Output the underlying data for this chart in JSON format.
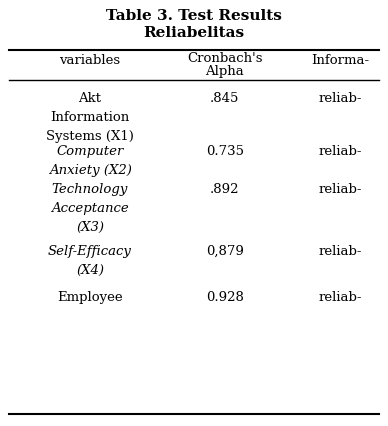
{
  "title_line1": "Table 3. Test Results",
  "title_line2": "Reliabelitas",
  "col_headers": [
    "variables",
    "Cronbach's\nAlpha",
    "Informa-"
  ],
  "rows": [
    {
      "var": [
        "Akt",
        "Information",
        "Systems (X1)"
      ],
      "alpha": ".845",
      "info": "reliab-",
      "italic": false
    },
    {
      "var": [
        "Computer",
        "Anxiety (X2)"
      ],
      "alpha": "0.735",
      "info": "reliab-",
      "italic": true
    },
    {
      "var": [
        "Technology",
        "Acceptance",
        "(X3)"
      ],
      "alpha": ".892",
      "info": "reliab-",
      "italic": true
    },
    {
      "var": [
        "Self-Efficacy",
        "(X4)"
      ],
      "alpha": "0,879",
      "info": "reliab-",
      "italic": true
    },
    {
      "var": [
        "Employee"
      ],
      "alpha": "0.928",
      "info": "reliab-",
      "italic": false
    }
  ],
  "bg_color": "#ffffff",
  "text_color": "#000000",
  "line_color": "#000000",
  "title_fontsize": 11,
  "header_fontsize": 9.5,
  "cell_fontsize": 9.5
}
